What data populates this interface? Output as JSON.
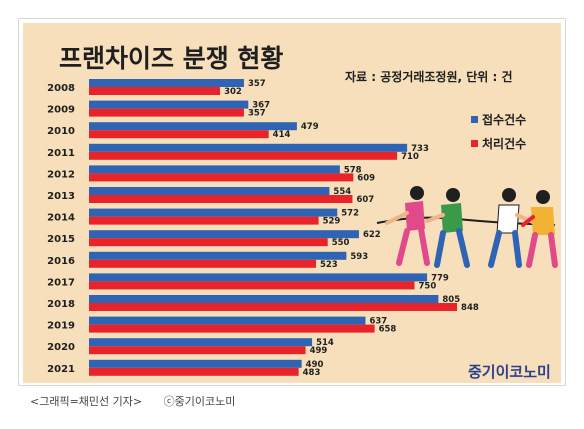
{
  "header": {
    "title": "프랜차이즈 분쟁 현황",
    "source": "자료 : 공정거래조정원, 단위 : 건"
  },
  "legend": {
    "received_label": "접수건수",
    "processed_label": "처리건수"
  },
  "colors": {
    "received": "#2f63b4",
    "processed": "#e8232a",
    "panel_background": "#f6dfba",
    "brand": "#2b3f8c"
  },
  "branding": {
    "logo_text": "중기이코노미"
  },
  "caption": {
    "credit": "<그래픽=채민선 기자>",
    "copyright": "ⓒ중기이코노미"
  },
  "illustration": {
    "icon": "tug-of-war-people-icon"
  },
  "chart_data": {
    "type": "bar",
    "orientation": "horizontal",
    "categories": [
      "2008",
      "2009",
      "2010",
      "2011",
      "2012",
      "2013",
      "2014",
      "2015",
      "2016",
      "2017",
      "2018",
      "2019",
      "2020",
      "2021"
    ],
    "series": [
      {
        "name": "접수건수",
        "values": [
          357,
          367,
          479,
          733,
          578,
          554,
          572,
          622,
          593,
          779,
          805,
          637,
          514,
          490
        ]
      },
      {
        "name": "처리건수",
        "values": [
          302,
          357,
          414,
          710,
          609,
          607,
          529,
          550,
          523,
          750,
          848,
          658,
          499,
          483
        ]
      }
    ],
    "xlim": [
      0,
      900
    ],
    "grid": false,
    "legend_position": "right"
  }
}
